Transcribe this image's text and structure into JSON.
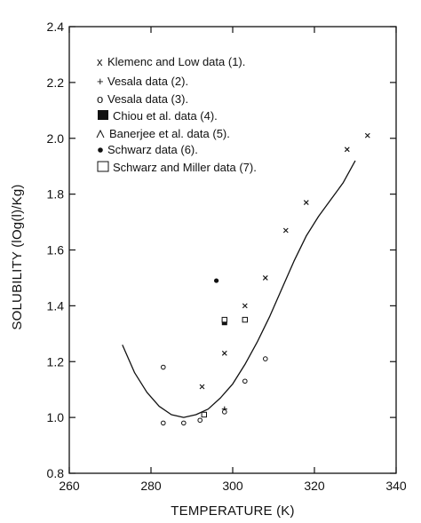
{
  "chart_data": {
    "type": "scatter",
    "title": "",
    "xlabel": "TEMPERATURE (K)",
    "ylabel": "SOLUBILITY (lOg(l)/Kg)",
    "xlim": [
      260,
      340
    ],
    "ylim": [
      0.8,
      2.4
    ],
    "xticks": [
      260,
      280,
      300,
      320,
      340
    ],
    "yticks": [
      0.8,
      1.0,
      1.2,
      1.4,
      1.6,
      1.8,
      2.0,
      2.2,
      2.4
    ],
    "xtick_labels": [
      "260",
      "280",
      "300",
      "320",
      "340"
    ],
    "ytick_labels": [
      "0.8",
      "1.0",
      "1.2",
      "1.4",
      "1.6",
      "1.8",
      "2.0",
      "2.2",
      "2.4"
    ],
    "grid": false,
    "legend_position": "top-left",
    "series": [
      {
        "name": "Klemenc and Low data (1).",
        "marker": "x",
        "legend_symbol": "x",
        "points": [
          [
            292.5,
            1.11
          ],
          [
            298,
            1.23
          ],
          [
            303,
            1.4
          ],
          [
            308,
            1.5
          ],
          [
            313,
            1.67
          ],
          [
            318,
            1.77
          ],
          [
            328,
            1.96
          ],
          [
            333,
            2.01
          ]
        ]
      },
      {
        "name": "Vesala data (2).",
        "marker": "plus",
        "legend_symbol": "+",
        "points": [
          [
            298,
            1.03
          ]
        ]
      },
      {
        "name": "Vesala data (3).",
        "marker": "circle-open",
        "legend_symbol": "o",
        "points": [
          [
            283,
            0.98
          ],
          [
            288,
            0.98
          ],
          [
            292,
            0.99
          ],
          [
            298,
            1.02
          ],
          [
            303,
            1.13
          ],
          [
            308,
            1.21
          ],
          [
            283,
            1.18
          ]
        ]
      },
      {
        "name": "Chiou et al. data (4).",
        "marker": "square-filled",
        "legend_symbol": "",
        "points": [
          [
            298,
            1.34
          ]
        ]
      },
      {
        "name": "Banerjee et al. data (5).",
        "marker": "triangle-open",
        "legend_symbol": "^",
        "points": []
      },
      {
        "name": "Schwarz data (6).",
        "marker": "circle-filled",
        "legend_symbol": "",
        "points": [
          [
            296,
            1.49
          ]
        ]
      },
      {
        "name": "Schwarz and Miller data (7).",
        "marker": "square-open",
        "legend_symbol": "",
        "points": [
          [
            293,
            1.01
          ],
          [
            298,
            1.35
          ],
          [
            303,
            1.35
          ]
        ]
      }
    ],
    "fit_curve": {
      "points": [
        [
          273,
          1.26
        ],
        [
          276,
          1.16
        ],
        [
          279,
          1.09
        ],
        [
          282,
          1.04
        ],
        [
          285,
          1.01
        ],
        [
          288,
          1.0
        ],
        [
          291,
          1.01
        ],
        [
          294,
          1.03
        ],
        [
          297,
          1.07
        ],
        [
          300,
          1.12
        ],
        [
          303,
          1.19
        ],
        [
          306,
          1.27
        ],
        [
          309,
          1.36
        ],
        [
          312,
          1.46
        ],
        [
          315,
          1.56
        ],
        [
          318,
          1.65
        ],
        [
          321,
          1.72
        ],
        [
          324,
          1.78
        ],
        [
          327,
          1.84
        ],
        [
          330,
          1.92
        ]
      ]
    }
  }
}
